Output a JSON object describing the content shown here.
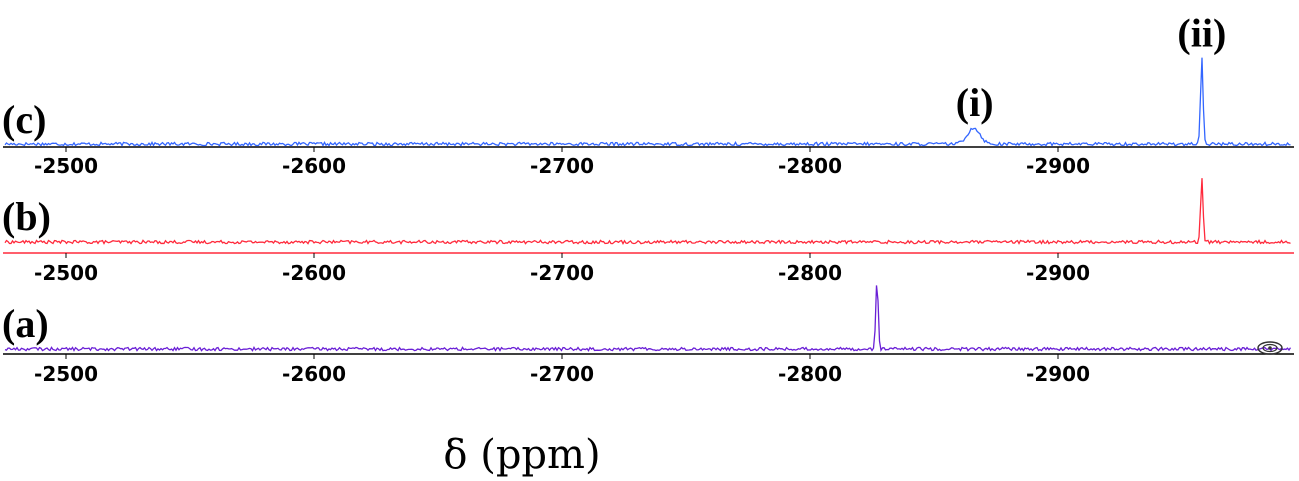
{
  "chart_data": {
    "type": "line",
    "x_unit": "ppm",
    "xlabel": "δ (ppm)",
    "xlim": [
      -2475,
      -2985
    ],
    "ticks": [
      -2500,
      -2600,
      -2700,
      -2800,
      -2900
    ],
    "tick_labels": [
      "-2500",
      "-2600",
      "-2700",
      "-2800",
      "-2900"
    ],
    "panels": [
      {
        "label": "(c)",
        "color": "#3366ff",
        "peaks": [
          {
            "x": -2866,
            "height": 0.18,
            "width": 2.5,
            "name": "(i)"
          },
          {
            "x": -2958,
            "height": 0.95,
            "width": 0.5,
            "name": "(ii)"
          }
        ]
      },
      {
        "label": "(b)",
        "color": "#ff2a3c",
        "peaks": [
          {
            "x": -2958,
            "height": 0.8,
            "width": 0.5,
            "name": ""
          }
        ]
      },
      {
        "label": "(a)",
        "color": "#6a1fd6",
        "peaks": [
          {
            "x": -2827,
            "height": 0.82,
            "width": 0.5,
            "name": ""
          }
        ]
      }
    ]
  }
}
